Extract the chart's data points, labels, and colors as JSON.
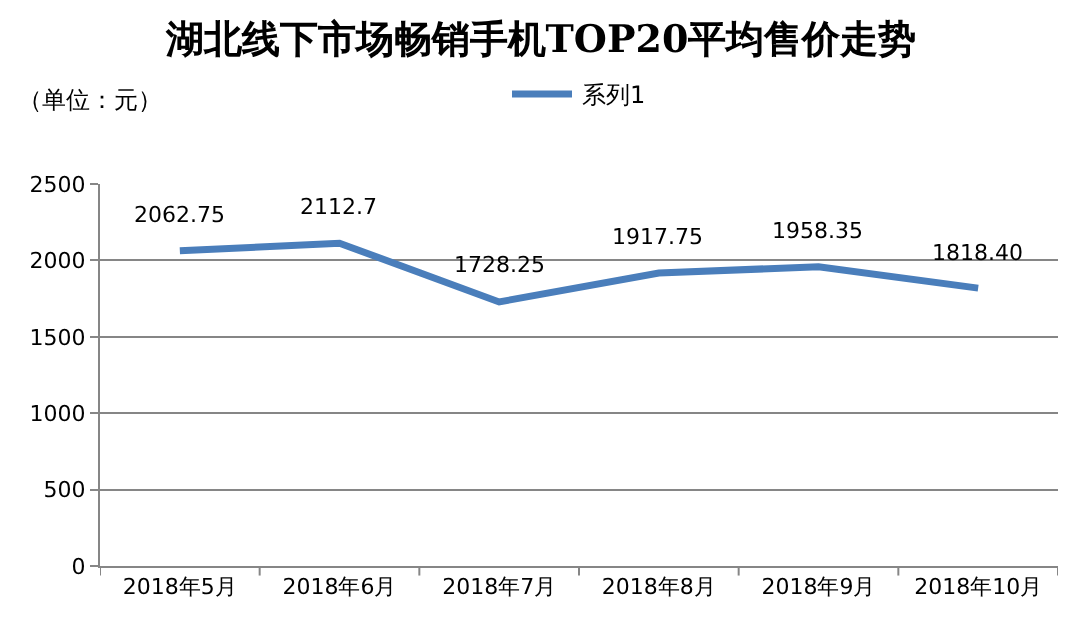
{
  "chart_data": {
    "type": "line",
    "title": "湖北线下市场畅销手机TOP20平均售价走势",
    "annotations": [
      "（单位：元）"
    ],
    "categories": [
      "2018年5月",
      "2018年6月",
      "2018年7月",
      "2018年8月",
      "2018年9月",
      "2018年10月"
    ],
    "series": [
      {
        "name": "系列1",
        "color": "#4a7ebb",
        "values": [
          2062.75,
          2112.7,
          1728.25,
          1917.75,
          1958.35,
          1818.4
        ],
        "value_labels": [
          "2062.75",
          "2112.7",
          "1728.25",
          "1917.75",
          "1958.35",
          "1818.40"
        ]
      }
    ],
    "ylim": [
      0,
      2500
    ],
    "yticks": [
      0,
      500,
      1000,
      1500,
      2000,
      2500
    ],
    "grid": "y",
    "legend": "top",
    "marker": "none",
    "line_style": "solid"
  }
}
